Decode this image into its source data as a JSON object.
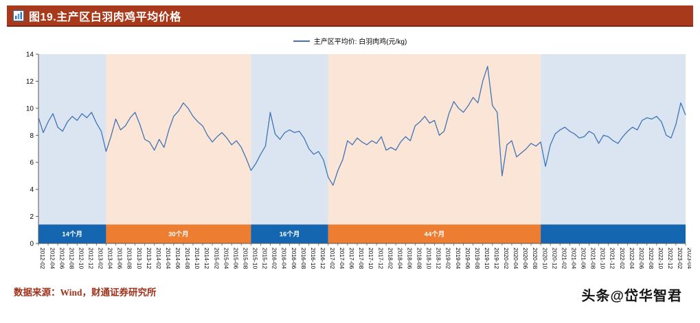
{
  "header": {
    "title": "图19.主产区白羽肉鸡平均价格",
    "bg_color": "#A8391B"
  },
  "legend": {
    "label": "主产区平均价: 白羽肉鸡(元/kg)"
  },
  "footer": {
    "source": "数据来源：Wind，财通证券研究所",
    "watermark": "头条@岱华智君"
  },
  "chart_data": {
    "type": "line",
    "title": "主产区白羽肉鸡平均价格",
    "ylabel": "元/kg",
    "ylim": [
      0,
      14
    ],
    "yticks": [
      0,
      2,
      4,
      6,
      8,
      10,
      12,
      14
    ],
    "x_start": "2012-02",
    "x_end": "2023-04",
    "tick_every": 2,
    "grid": false,
    "legend_position": "top-center",
    "axis_color": "#595959",
    "bar_height": 1.4,
    "x_tick_labels": [
      "2012-02",
      "2012-04",
      "2012-06",
      "2012-08",
      "2012-10",
      "2012-12",
      "2013-02",
      "2013-04",
      "2013-06",
      "2013-08",
      "2013-10",
      "2013-12",
      "2014-02",
      "2014-04",
      "2014-06",
      "2014-08",
      "2014-10",
      "2014-12",
      "2015-02",
      "2015-04",
      "2015-06",
      "2015-08",
      "2015-10",
      "2015-12",
      "2016-02",
      "2016-04",
      "2016-06",
      "2016-08",
      "2016-10",
      "2016-12",
      "2017-02",
      "2017-04",
      "2017-06",
      "2017-08",
      "2017-10",
      "2017-12",
      "2018-02",
      "2018-04",
      "2018-06",
      "2018-08",
      "2018-10",
      "2018-12",
      "2019-02",
      "2019-04",
      "2019-06",
      "2019-08",
      "2019-10",
      "2019-12",
      "2020-02",
      "2020-04",
      "2020-06",
      "2020-08",
      "2020-10",
      "2020-12",
      "2021-02",
      "2021-04",
      "2021-06",
      "2021-08",
      "2021-10",
      "2021-12",
      "2022-02",
      "2022-04",
      "2022-06",
      "2022-08",
      "2022-10",
      "2022-12",
      "2023-02",
      "2023-04"
    ],
    "bands": [
      {
        "label": "14个月",
        "from_idx": 0,
        "to_idx": 14,
        "bg": "#DBE5F1",
        "bar": "#1566B0"
      },
      {
        "label": "30个月",
        "from_idx": 14,
        "to_idx": 44,
        "bg": "#FBE5D6",
        "bar": "#ED7D31"
      },
      {
        "label": "16个月",
        "from_idx": 44,
        "to_idx": 60,
        "bg": "#DBE5F1",
        "bar": "#1566B0"
      },
      {
        "label": "44个月",
        "from_idx": 60,
        "to_idx": 104,
        "bg": "#FBE5D6",
        "bar": "#ED7D31"
      },
      {
        "label": "",
        "from_idx": 104,
        "to_idx": 134,
        "bg": "#DBE5F1",
        "bar": "#1566B0"
      }
    ],
    "series": [
      {
        "name": "主产区平均价: 白羽肉鸡(元/kg)",
        "color": "#3E74B5",
        "values": [
          9.3,
          8.2,
          9.0,
          9.6,
          8.6,
          8.3,
          9.0,
          9.4,
          9.1,
          9.6,
          9.3,
          9.7,
          8.9,
          8.3,
          6.8,
          7.9,
          9.2,
          8.4,
          8.7,
          9.3,
          9.7,
          8.8,
          7.7,
          7.5,
          6.9,
          7.7,
          7.1,
          8.4,
          9.4,
          9.8,
          10.4,
          10.0,
          9.4,
          9.0,
          8.7,
          8.0,
          7.5,
          7.9,
          8.2,
          7.8,
          7.3,
          7.6,
          7.1,
          6.3,
          5.4,
          5.9,
          6.6,
          7.2,
          9.7,
          8.1,
          7.7,
          8.2,
          8.4,
          8.2,
          8.3,
          7.8,
          7.0,
          6.6,
          6.8,
          6.2,
          4.9,
          4.3,
          5.4,
          6.2,
          7.6,
          7.3,
          7.8,
          7.5,
          7.3,
          7.6,
          7.4,
          7.9,
          6.9,
          7.1,
          6.9,
          7.5,
          7.9,
          7.6,
          8.7,
          9.0,
          9.4,
          8.9,
          9.1,
          8.0,
          8.3,
          9.6,
          10.5,
          10.0,
          9.7,
          10.2,
          10.8,
          10.4,
          12.0,
          13.1,
          10.2,
          9.7,
          5.0,
          7.3,
          7.6,
          6.4,
          6.7,
          7.0,
          7.4,
          7.2,
          7.5,
          5.7,
          7.3,
          8.1,
          8.4,
          8.6,
          8.3,
          8.1,
          7.8,
          7.9,
          8.3,
          8.1,
          7.4,
          8.0,
          7.9,
          7.6,
          7.4,
          7.9,
          8.3,
          8.6,
          8.4,
          9.1,
          9.3,
          9.2,
          9.4,
          9.0,
          8.0,
          7.8,
          8.8,
          10.4,
          9.5
        ]
      }
    ]
  }
}
